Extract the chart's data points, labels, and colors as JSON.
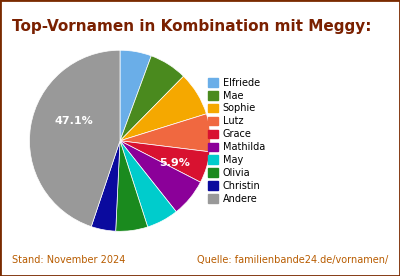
{
  "title": "Top-Vornamen in Kombination mit Meggy:",
  "labels": [
    "Elfriede",
    "Mae",
    "Sophie",
    "Lutz",
    "Grace",
    "Mathilda",
    "May",
    "Olivia",
    "Christin",
    "Andere"
  ],
  "values": [
    5.9,
    7.1,
    8.2,
    7.1,
    5.9,
    7.1,
    6.0,
    6.0,
    4.6,
    47.1
  ],
  "colors": [
    "#6aaee8",
    "#4a8a1e",
    "#f5a800",
    "#f06840",
    "#d81230",
    "#8b0099",
    "#00cccc",
    "#1a8a1e",
    "#0a0a9e",
    "#999999"
  ],
  "label_47": "47.1%",
  "label_59": "5.9%",
  "background_color": "#ffffff",
  "border_color": "#7a2a00",
  "footer_left": "Stand: November 2024",
  "footer_right": "Quelle: familienbande24.de/vornamen/",
  "footer_color": "#b85c00",
  "title_color": "#7a2000",
  "startangle": 90
}
